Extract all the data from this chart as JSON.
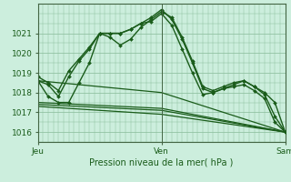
{
  "title": "Pression niveau de la mer( hPa )",
  "background_color": "#cceedd",
  "grid_color": "#88bb99",
  "line_color": "#1a5c1a",
  "xlim": [
    0,
    48
  ],
  "ylim": [
    1015.5,
    1022.5
  ],
  "yticks": [
    1016,
    1017,
    1018,
    1019,
    1020,
    1021
  ],
  "xtick_labels": [
    [
      "Jeu",
      0
    ],
    [
      "Ven",
      24
    ],
    [
      "Sam",
      48
    ]
  ],
  "series_no_marker": [
    [
      [
        0,
        1018.6
      ],
      [
        24,
        1018.0
      ],
      [
        48,
        1016.0
      ]
    ],
    [
      [
        0,
        1017.5
      ],
      [
        24,
        1017.2
      ],
      [
        48,
        1016.0
      ]
    ],
    [
      [
        0,
        1017.3
      ],
      [
        24,
        1016.9
      ],
      [
        48,
        1016.0
      ]
    ],
    [
      [
        0,
        1017.4
      ],
      [
        24,
        1017.1
      ],
      [
        48,
        1016.0
      ]
    ]
  ],
  "series_with_marker": [
    [
      [
        0,
        1018.6
      ],
      [
        2,
        1018.4
      ],
      [
        4,
        1017.8
      ],
      [
        6,
        1018.8
      ],
      [
        8,
        1019.6
      ],
      [
        10,
        1020.2
      ],
      [
        12,
        1021.0
      ],
      [
        14,
        1020.8
      ],
      [
        16,
        1020.4
      ],
      [
        18,
        1020.7
      ],
      [
        20,
        1021.3
      ],
      [
        22,
        1021.7
      ],
      [
        24,
        1022.1
      ],
      [
        26,
        1021.8
      ],
      [
        28,
        1020.8
      ],
      [
        30,
        1019.6
      ],
      [
        32,
        1018.3
      ],
      [
        34,
        1018.1
      ],
      [
        36,
        1018.3
      ],
      [
        38,
        1018.5
      ],
      [
        40,
        1018.6
      ],
      [
        42,
        1018.3
      ],
      [
        44,
        1017.9
      ],
      [
        46,
        1016.8
      ],
      [
        48,
        1016.0
      ]
    ],
    [
      [
        0,
        1018.8
      ],
      [
        2,
        1018.5
      ],
      [
        4,
        1018.1
      ],
      [
        6,
        1019.1
      ],
      [
        8,
        1019.7
      ],
      [
        10,
        1020.3
      ],
      [
        12,
        1021.0
      ],
      [
        14,
        1021.0
      ],
      [
        16,
        1021.0
      ],
      [
        18,
        1021.2
      ],
      [
        20,
        1021.5
      ],
      [
        22,
        1021.8
      ],
      [
        24,
        1022.2
      ],
      [
        26,
        1021.7
      ],
      [
        28,
        1020.7
      ],
      [
        30,
        1019.5
      ],
      [
        32,
        1018.2
      ],
      [
        34,
        1018.0
      ],
      [
        36,
        1018.2
      ],
      [
        38,
        1018.4
      ],
      [
        40,
        1018.6
      ],
      [
        42,
        1018.3
      ],
      [
        44,
        1018.0
      ],
      [
        46,
        1017.5
      ],
      [
        48,
        1016.0
      ]
    ],
    [
      [
        0,
        1018.6
      ],
      [
        2,
        1017.8
      ],
      [
        4,
        1017.5
      ],
      [
        6,
        1017.5
      ],
      [
        8,
        1018.5
      ],
      [
        10,
        1019.5
      ],
      [
        12,
        1021.0
      ],
      [
        14,
        1021.0
      ],
      [
        16,
        1021.0
      ],
      [
        18,
        1021.2
      ],
      [
        20,
        1021.5
      ],
      [
        22,
        1021.6
      ],
      [
        24,
        1022.0
      ],
      [
        26,
        1021.4
      ],
      [
        28,
        1020.2
      ],
      [
        30,
        1019.0
      ],
      [
        32,
        1017.9
      ],
      [
        34,
        1018.0
      ],
      [
        36,
        1018.2
      ],
      [
        38,
        1018.3
      ],
      [
        40,
        1018.4
      ],
      [
        42,
        1018.1
      ],
      [
        44,
        1017.7
      ],
      [
        46,
        1016.5
      ],
      [
        48,
        1016.0
      ]
    ]
  ]
}
